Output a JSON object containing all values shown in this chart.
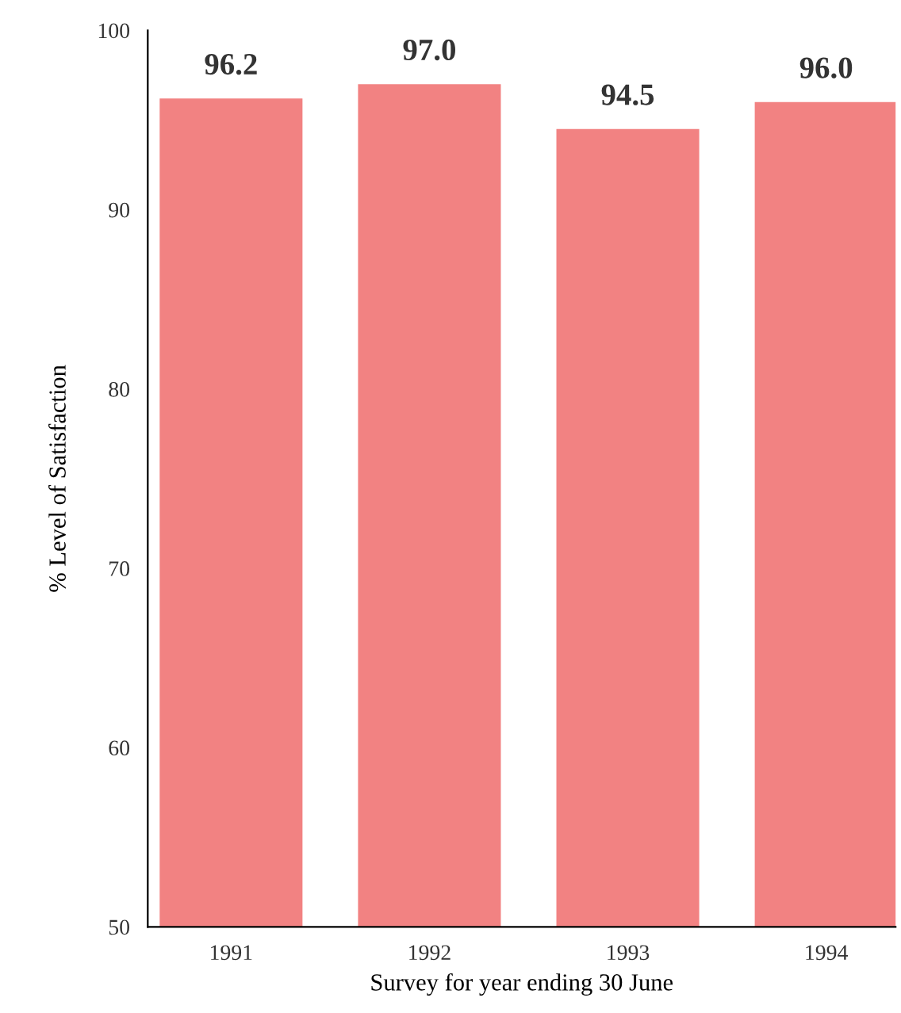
{
  "chart_data": {
    "type": "bar",
    "xlabel": "Survey for year ending 30 June",
    "ylabel": "% Level of Satisfaction",
    "categories": [
      "1991",
      "1992",
      "1993",
      "1994"
    ],
    "values": [
      96.2,
      97.0,
      94.5,
      96.0
    ],
    "value_labels": [
      "96.2",
      "97.0",
      "94.5",
      "96.0"
    ],
    "color": "#f28282",
    "ylim": [
      50,
      100
    ],
    "yticks": [
      50,
      60,
      70,
      80,
      90,
      100
    ],
    "grid": false,
    "legend": false
  }
}
